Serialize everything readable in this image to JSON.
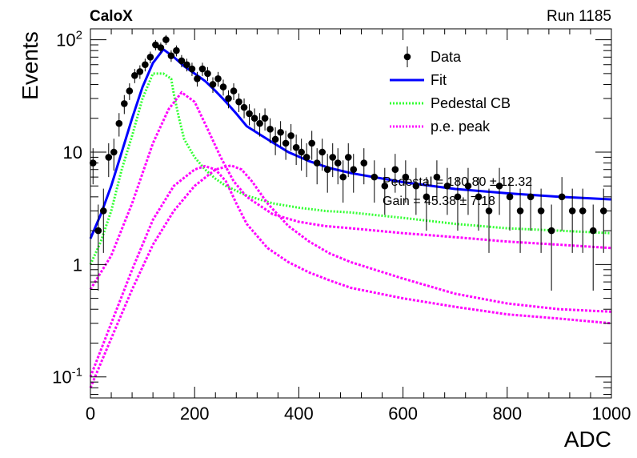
{
  "header": {
    "experiment": "CaloX",
    "run": "Run 1185"
  },
  "overlay_text": [
    "Pedestal = 180.80 ± 12.32",
    "Gain = 45.38 ± 7.18"
  ],
  "colors": {
    "data": "#000000",
    "fit": "#0000ff",
    "pedestal": "#33ff33",
    "pe": "#ff00ff"
  },
  "chart_data": {
    "type": "scatter",
    "title": "",
    "xlabel": "ADC",
    "ylabel": "Events",
    "xlim": [
      0,
      1000
    ],
    "ylim": [
      0.065,
      125
    ],
    "y_scale": "log",
    "x_ticks": [
      0,
      200,
      400,
      600,
      800,
      1000
    ],
    "y_tick_labels": [
      "10^-1",
      "1",
      "10",
      "10^2"
    ],
    "legend": {
      "position": "top-right",
      "entries": [
        {
          "label": "Data",
          "style": "marker"
        },
        {
          "label": "Fit",
          "style": "solid"
        },
        {
          "label": "Pedestal CB",
          "style": "dotted"
        },
        {
          "label": "p.e. peak",
          "style": "dotted"
        }
      ]
    },
    "series": [
      {
        "name": "Data",
        "kind": "points",
        "x": [
          5,
          15,
          25,
          35,
          45,
          55,
          65,
          75,
          85,
          95,
          105,
          115,
          125,
          135,
          145,
          155,
          165,
          175,
          185,
          195,
          205,
          215,
          225,
          235,
          245,
          255,
          265,
          275,
          285,
          295,
          305,
          315,
          325,
          335,
          345,
          355,
          365,
          375,
          385,
          395,
          405,
          415,
          425,
          435,
          445,
          455,
          465,
          475,
          485,
          495,
          505,
          525,
          545,
          565,
          585,
          605,
          625,
          645,
          665,
          685,
          705,
          725,
          745,
          765,
          785,
          805,
          825,
          845,
          865,
          885,
          905,
          925,
          945,
          965,
          985
        ],
        "y": [
          8,
          2,
          3,
          9,
          10,
          18,
          27,
          35,
          48,
          52,
          60,
          70,
          90,
          85,
          100,
          72,
          80,
          65,
          60,
          55,
          45,
          55,
          50,
          40,
          45,
          38,
          30,
          35,
          28,
          25,
          22,
          20,
          18,
          20,
          16,
          13,
          15,
          12,
          14,
          11,
          10,
          9,
          12,
          8,
          10,
          7,
          9,
          8,
          6,
          9,
          7,
          8,
          6,
          5,
          7,
          6,
          5,
          4,
          6,
          5,
          4,
          5,
          4,
          3,
          5,
          4,
          3,
          4,
          3,
          2,
          4,
          3,
          3,
          2,
          3
        ]
      },
      {
        "name": "Fit",
        "kind": "line",
        "x": [
          0,
          20,
          40,
          60,
          80,
          100,
          120,
          140,
          160,
          180,
          200,
          220,
          240,
          260,
          280,
          300,
          340,
          380,
          420,
          460,
          500,
          600,
          700,
          800,
          900,
          1000
        ],
        "y": [
          1.7,
          2.8,
          5,
          10,
          20,
          38,
          62,
          82,
          70,
          58,
          50,
          43,
          35,
          28,
          22,
          17,
          13,
          10,
          8.3,
          7.2,
          6.5,
          5.4,
          4.7,
          4.3,
          4.0,
          3.8
        ]
      },
      {
        "name": "Pedestal CB",
        "kind": "line",
        "x": [
          0,
          20,
          40,
          60,
          80,
          100,
          120,
          140,
          155,
          160,
          170,
          180,
          200,
          220,
          240,
          260,
          300,
          350,
          400,
          450,
          500,
          600,
          700,
          800,
          900,
          1000
        ],
        "y": [
          1.0,
          1.6,
          3.0,
          7.0,
          14,
          30,
          50,
          50,
          45,
          33,
          20,
          13,
          9,
          7,
          5.8,
          5,
          4.1,
          3.5,
          3.2,
          3.0,
          2.9,
          2.6,
          2.3,
          2.1,
          2.0,
          1.9
        ]
      },
      {
        "name": "p.e. peak (1)",
        "kind": "line",
        "x": [
          0,
          40,
          80,
          120,
          150,
          175,
          200,
          225,
          250,
          275,
          300,
          350,
          400,
          450,
          500,
          600,
          700,
          800,
          900,
          1000
        ],
        "y": [
          0.6,
          1.2,
          3.5,
          12,
          24,
          34,
          28,
          16,
          9,
          5.5,
          4,
          2.8,
          2.4,
          2.2,
          2.1,
          1.9,
          1.75,
          1.6,
          1.5,
          1.4
        ]
      },
      {
        "name": "p.e. peak (2)",
        "kind": "line",
        "x": [
          0,
          40,
          80,
          120,
          160,
          200,
          220,
          240,
          260,
          280,
          300,
          340,
          380,
          420,
          460,
          500,
          600,
          700,
          800,
          900,
          1000
        ],
        "y": [
          0.1,
          0.3,
          0.9,
          2.5,
          5,
          7,
          7.5,
          7.0,
          5.5,
          3.5,
          2.3,
          1.4,
          1.05,
          0.85,
          0.72,
          0.62,
          0.5,
          0.42,
          0.36,
          0.33,
          0.3
        ]
      },
      {
        "name": "p.e. peak (3)",
        "kind": "line",
        "x": [
          0,
          40,
          80,
          120,
          160,
          200,
          240,
          270,
          290,
          310,
          340,
          380,
          420,
          460,
          500,
          600,
          700,
          800,
          900,
          1000
        ],
        "y": [
          0.08,
          0.22,
          0.6,
          1.5,
          3,
          5,
          7,
          7.6,
          7,
          5.5,
          3.5,
          2.2,
          1.6,
          1.25,
          1.05,
          0.75,
          0.55,
          0.45,
          0.4,
          0.38
        ]
      }
    ]
  }
}
